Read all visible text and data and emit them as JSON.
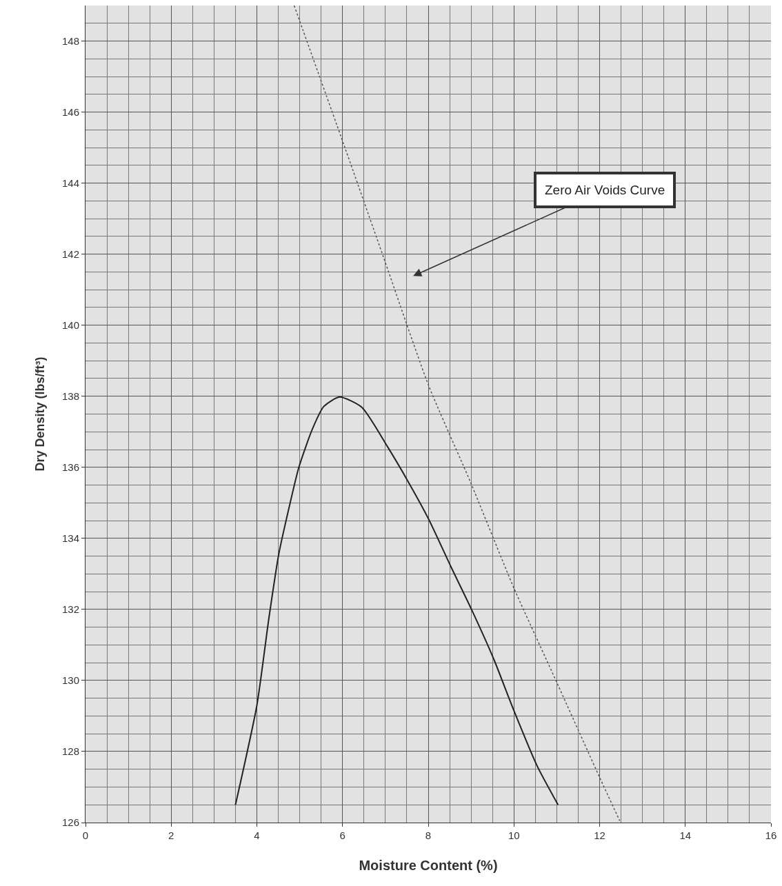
{
  "chart_data": {
    "type": "line",
    "xlabel": "Moisture Content (%)",
    "ylabel": "Dry Density (lbs/ft³)",
    "xlim": [
      0,
      16
    ],
    "xticks": [
      0,
      2,
      4,
      6,
      8,
      10,
      12,
      14,
      16
    ],
    "ylim": [
      126,
      149
    ],
    "yticks": [
      126,
      128,
      130,
      132,
      134,
      136,
      138,
      140,
      142,
      144,
      146,
      148
    ],
    "grid": true,
    "marker": "none",
    "series": [
      {
        "color": "#222222",
        "line_style": "solid",
        "x": [
          3.5,
          4.0,
          4.28,
          4.51,
          4.75,
          4.98,
          5.29,
          5.56,
          5.93,
          6.45,
          7.04,
          7.53,
          8.01,
          8.53,
          9.01,
          9.53,
          10.0,
          10.54,
          11.03
        ],
        "values": [
          126.5,
          129.3,
          131.75,
          133.55,
          134.86,
          136.0,
          137.06,
          137.71,
          137.98,
          137.69,
          136.6,
          135.6,
          134.54,
          133.2,
          132.0,
          130.6,
          129.15,
          127.6,
          126.5
        ]
      },
      {
        "color": "#555555",
        "line_style": "dotted",
        "x": [
          4.87,
          6.04,
          6.96,
          8.01,
          8.98,
          10.0,
          10.98,
          11.99,
          12.47
        ],
        "values": [
          149.0,
          145.05,
          141.9,
          138.3,
          135.6,
          132.6,
          130.0,
          127.3,
          126.05
        ]
      }
    ],
    "annotations": [
      "Zero Air Voids Curve"
    ]
  }
}
